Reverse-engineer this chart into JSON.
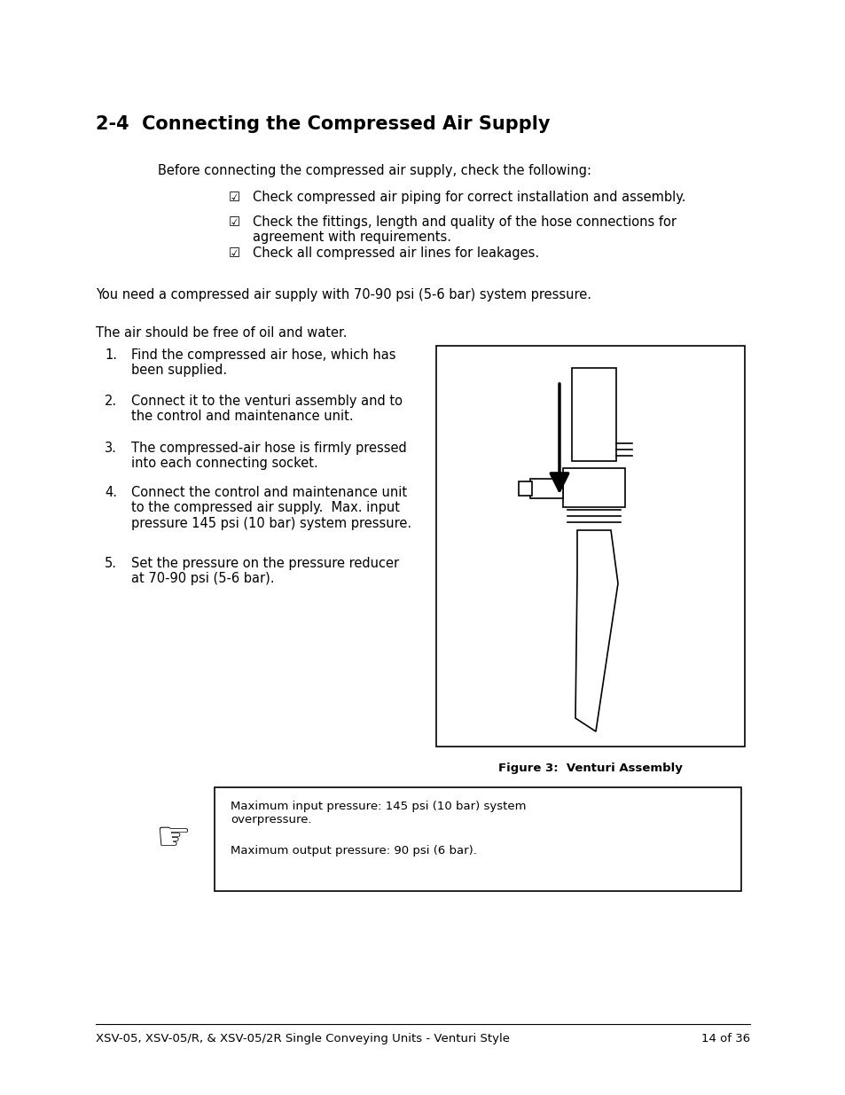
{
  "bg_color": "#ffffff",
  "title": "2-4  Connecting the Compressed Air Supply",
  "body_fontsize": 10.5,
  "small_fontsize": 9.5,
  "title_fontsize": 15,
  "intro_text": "Before connecting the compressed air supply, check the following:",
  "checklist": [
    "Check compressed air piping for correct installation and assembly.",
    "Check the fittings, length and quality of the hose connections for\nagreement with requirements.",
    "Check all compressed air lines for leakages."
  ],
  "pressure_text": "You need a compressed air supply with 70-90 psi (5-6 bar) system pressure.",
  "air_text": "The air should be free of oil and water.",
  "numbered_items": [
    "Find the compressed air hose, which has\nbeen supplied.",
    "Connect it to the venturi assembly and to\nthe control and maintenance unit.",
    "The compressed-air hose is firmly pressed\ninto each connecting socket.",
    "Connect the control and maintenance unit\nto the compressed air supply.  Max. input\npressure 145 psi (10 bar) system pressure.",
    "Set the pressure on the pressure reducer\nat 70-90 psi (5-6 bar)."
  ],
  "figure_caption": "Figure 3:  Venturi Assembly",
  "note_text1": "Maximum input pressure: 145 psi (10 bar) system\noverpressure.",
  "note_text2": "Maximum output pressure: 90 psi (6 bar).",
  "footer_text_left": "XSV-05, XSV-05/R, & XSV-05/2R Single Conveying Units - Venturi Style",
  "footer_text_right": "14 of 36"
}
